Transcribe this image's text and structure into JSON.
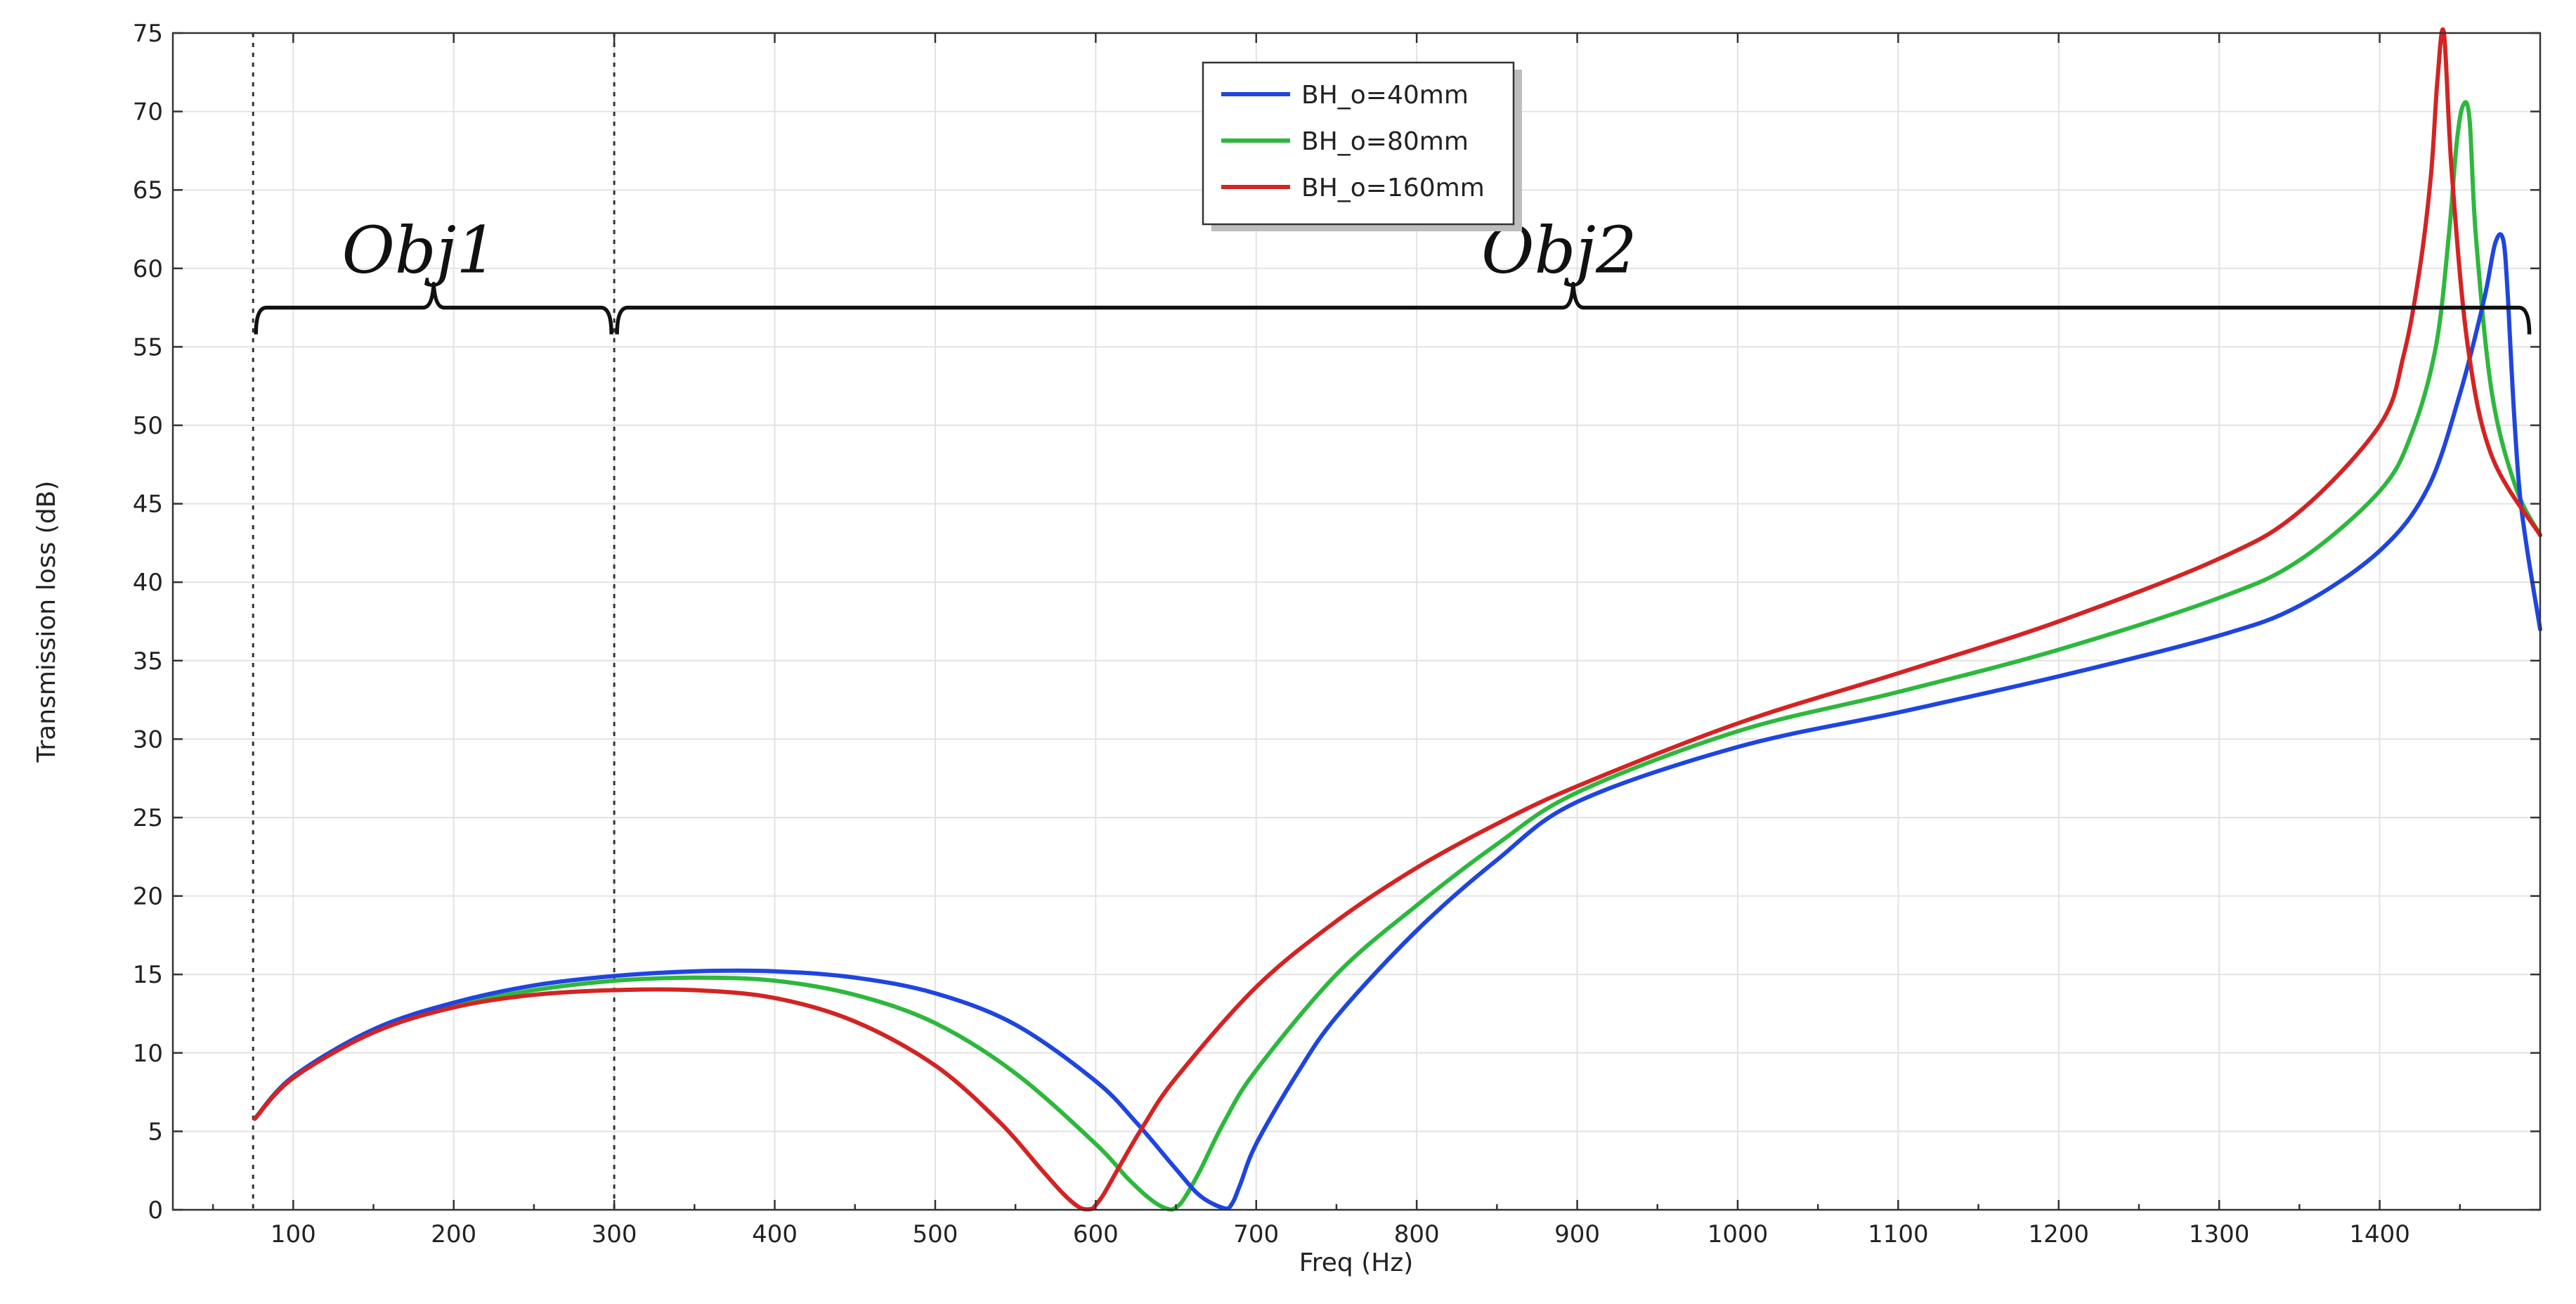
{
  "chart_data": {
    "type": "line",
    "title": "",
    "xlabel": "Freq (Hz)",
    "ylabel": "Transmission loss (dB)",
    "xlim": [
      25,
      1500
    ],
    "ylim": [
      0,
      75
    ],
    "xticks": [
      100,
      200,
      300,
      400,
      500,
      600,
      700,
      800,
      900,
      1000,
      1100,
      1200,
      1300,
      1400
    ],
    "yticks": [
      0,
      5,
      10,
      15,
      20,
      25,
      30,
      35,
      40,
      45,
      50,
      55,
      60,
      65,
      70,
      75
    ],
    "grid": true,
    "legend_position": "top-center",
    "series": [
      {
        "name": "BH_o=40mm",
        "color": "#1f45e0",
        "x": [
          76,
          100,
          150,
          200,
          250,
          300,
          350,
          400,
          450,
          500,
          550,
          600,
          625,
          650,
          665,
          680,
          685,
          690,
          700,
          725,
          750,
          800,
          850,
          900,
          1000,
          1100,
          1200,
          1300,
          1350,
          1400,
          1430,
          1450,
          1465,
          1472,
          1477,
          1480,
          1483,
          1487,
          1492,
          1500
        ],
        "y": [
          5.8,
          8.5,
          11.5,
          13.2,
          14.3,
          14.9,
          15.2,
          15.2,
          14.8,
          13.8,
          11.8,
          8.2,
          5.6,
          2.6,
          0.9,
          0.1,
          0.4,
          1.6,
          4.2,
          8.6,
          12.3,
          17.8,
          22.3,
          26.0,
          29.5,
          31.7,
          34.0,
          36.6,
          38.5,
          42.0,
          46.0,
          52.0,
          58.0,
          61.6,
          61.8,
          58.0,
          52.0,
          46.0,
          42.0,
          37.0
        ]
      },
      {
        "name": "BH_o=80mm",
        "color": "#2db83d",
        "x": [
          76,
          100,
          150,
          200,
          250,
          300,
          350,
          400,
          450,
          500,
          550,
          600,
          620,
          635,
          645,
          650,
          655,
          665,
          680,
          700,
          750,
          800,
          850,
          900,
          1000,
          1100,
          1200,
          1300,
          1350,
          1400,
          1420,
          1435,
          1443,
          1448,
          1452,
          1456,
          1460,
          1470,
          1485,
          1500
        ],
        "y": [
          5.8,
          8.4,
          11.4,
          13.0,
          14.0,
          14.6,
          14.8,
          14.6,
          13.7,
          11.9,
          8.7,
          4.2,
          2.0,
          0.6,
          0.05,
          0.15,
          0.7,
          2.5,
          5.6,
          8.9,
          15.0,
          19.4,
          23.3,
          26.6,
          30.5,
          33.0,
          35.7,
          39.0,
          41.4,
          45.8,
          49.5,
          55.0,
          62.0,
          68.0,
          70.4,
          69.5,
          62.0,
          52.0,
          46.0,
          43.0
        ]
      },
      {
        "name": "BH_o=160mm",
        "color": "#d42323",
        "x": [
          76,
          100,
          150,
          200,
          250,
          300,
          350,
          400,
          450,
          500,
          540,
          565,
          580,
          590,
          597,
          600,
          605,
          615,
          630,
          650,
          700,
          750,
          800,
          850,
          900,
          1000,
          1100,
          1200,
          1300,
          1350,
          1400,
          1415,
          1425,
          1432,
          1436,
          1440,
          1445,
          1455,
          1470,
          1500
        ],
        "y": [
          5.8,
          8.4,
          11.3,
          12.9,
          13.7,
          14.0,
          14.0,
          13.5,
          12.0,
          9.2,
          5.6,
          2.7,
          1.0,
          0.15,
          0.05,
          0.3,
          1.0,
          2.8,
          5.4,
          8.4,
          14.2,
          18.4,
          21.8,
          24.6,
          27.0,
          31.0,
          34.2,
          37.5,
          41.5,
          44.5,
          50.0,
          54.5,
          60.0,
          66.0,
          72.0,
          75.0,
          66.0,
          55.0,
          48.0,
          43.0
        ]
      }
    ],
    "annotations": [
      {
        "label": "Obj1",
        "x_start": 75,
        "x_end": 300,
        "y": 57.5
      },
      {
        "label": "Obj2",
        "x_start": 300,
        "x_end": 1495,
        "y": 57.5
      }
    ],
    "reference_lines": [
      {
        "x": 75,
        "style": "dotted"
      },
      {
        "x": 300,
        "style": "dotted"
      }
    ]
  }
}
